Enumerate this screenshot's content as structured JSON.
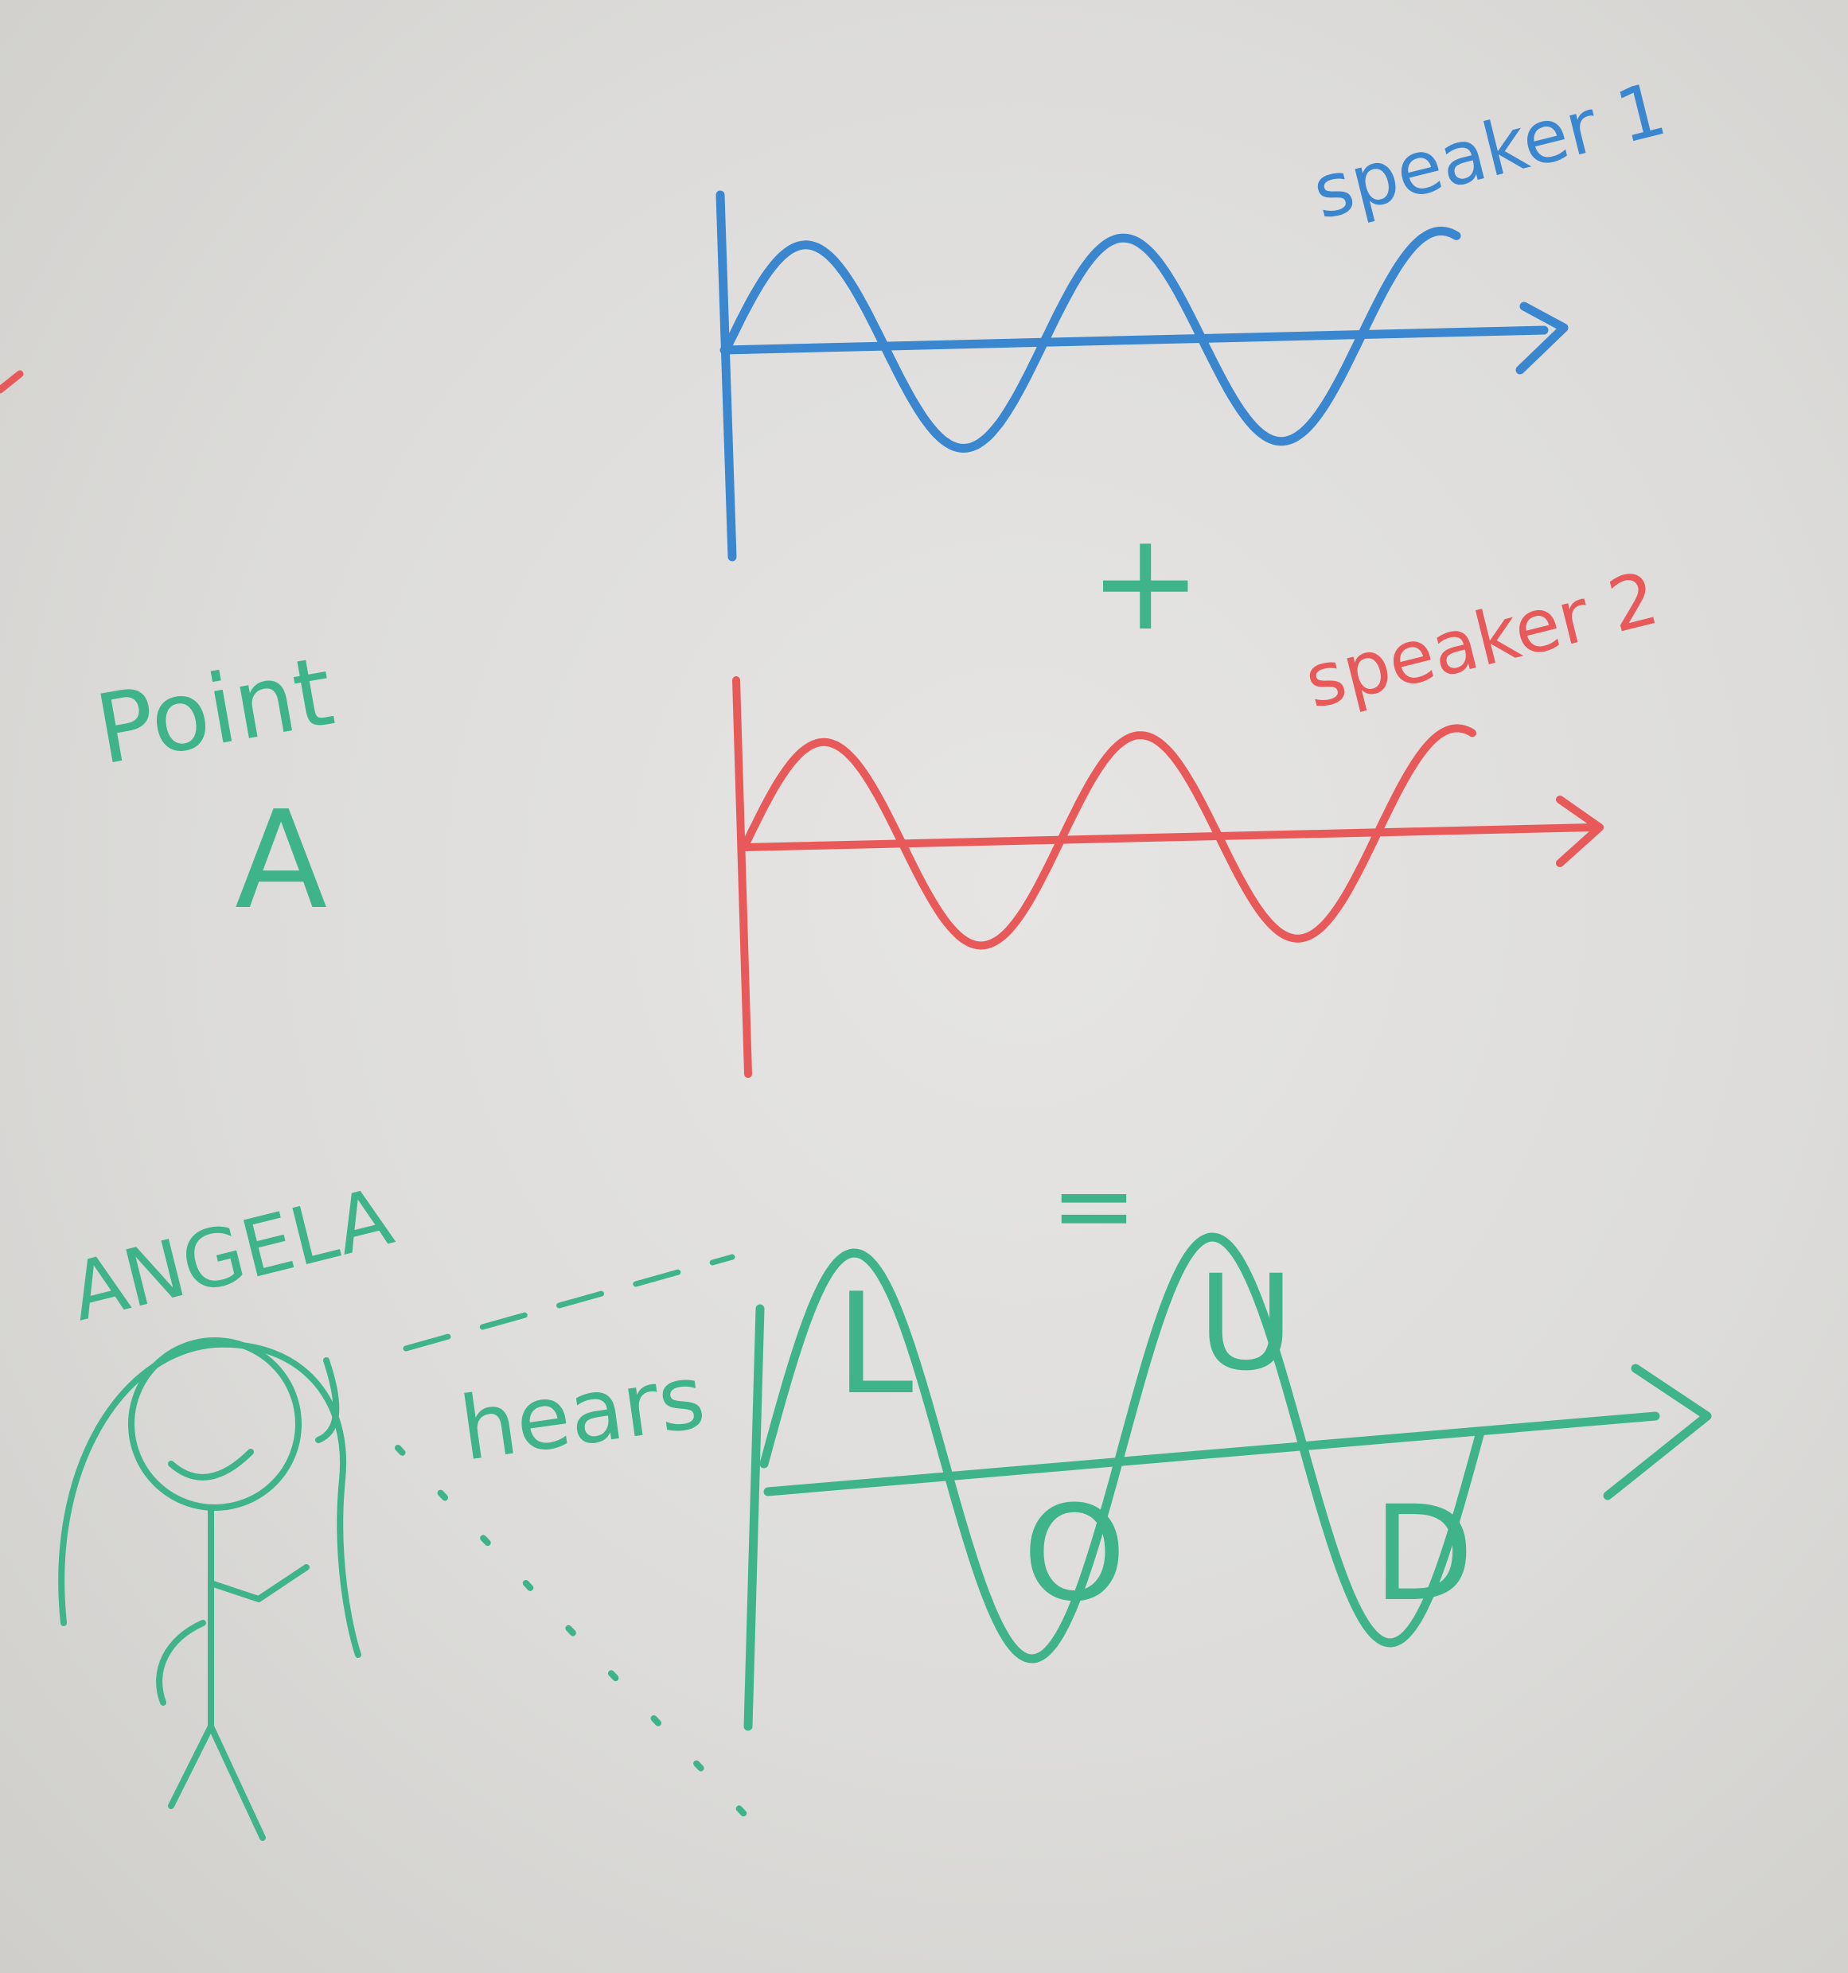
{
  "colors": {
    "board": "#dddcda",
    "blue_marker": "#3a86cf",
    "red_marker": "#e85a5a",
    "green_marker": "#3fb48a"
  },
  "labels": {
    "speaker1": "speaker 1",
    "speaker2": "speaker 2",
    "plus": "+",
    "equals": "=",
    "point": "Point",
    "point_letter": "A",
    "person_name": "ANGELA",
    "hears": "hears",
    "loud_letters": [
      "L",
      "O",
      "U",
      "D"
    ]
  },
  "waves": {
    "speaker1": {
      "cycles": 2.3,
      "amplitude": 1,
      "phase": 0
    },
    "speaker2": {
      "cycles": 2.3,
      "amplitude": 1,
      "phase": 0
    },
    "sum": {
      "cycles": 2,
      "amplitude": 2,
      "phase": 0
    }
  }
}
